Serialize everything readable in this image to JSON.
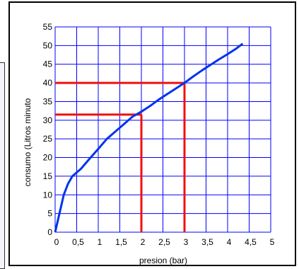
{
  "colors": {
    "grid": "#0000ff",
    "curve": "#0033ee",
    "guide": "#ee1111",
    "frame": "#000000"
  },
  "chart_data": {
    "type": "line",
    "title": "",
    "xlabel": "presion (bar)",
    "ylabel": "consumo (Litros minuto",
    "xlim": [
      0,
      5
    ],
    "ylim": [
      0,
      55
    ],
    "xticks": [
      0,
      0.5,
      1,
      1.5,
      2,
      2.5,
      3,
      3.5,
      4,
      4.5,
      5
    ],
    "xtick_labels": [
      "0",
      "0,5",
      "1",
      "1,5",
      "2",
      "2,5",
      "3",
      "3,5",
      "4",
      "4,5",
      "5"
    ],
    "yticks": [
      0,
      5,
      10,
      15,
      20,
      25,
      30,
      35,
      40,
      45,
      50,
      55
    ],
    "ytick_labels": [
      "0",
      "5",
      "10",
      "15",
      "20",
      "25",
      "30",
      "35",
      "40",
      "45",
      "50",
      "55"
    ],
    "grid": true,
    "series": [
      {
        "x": [
          0,
          0.1,
          0.2,
          0.3,
          0.4,
          0.6,
          0.8,
          1.0,
          1.2,
          1.4,
          1.6,
          1.8,
          2.0,
          2.2,
          2.4,
          2.6,
          2.8,
          3.0,
          3.2,
          3.4,
          3.6,
          3.8,
          4.0,
          4.2,
          4.35
        ],
        "y": [
          0,
          5,
          10,
          13,
          15,
          17,
          19.7,
          22.3,
          25,
          27,
          29,
          31,
          32.3,
          33.8,
          35.5,
          37,
          38.5,
          40,
          41.7,
          43.3,
          44.8,
          46.3,
          47.7,
          49.2,
          50.5
        ]
      }
    ],
    "guides": [
      {
        "x": 2,
        "y": 31.5
      },
      {
        "x": 3,
        "y": 40
      }
    ]
  }
}
